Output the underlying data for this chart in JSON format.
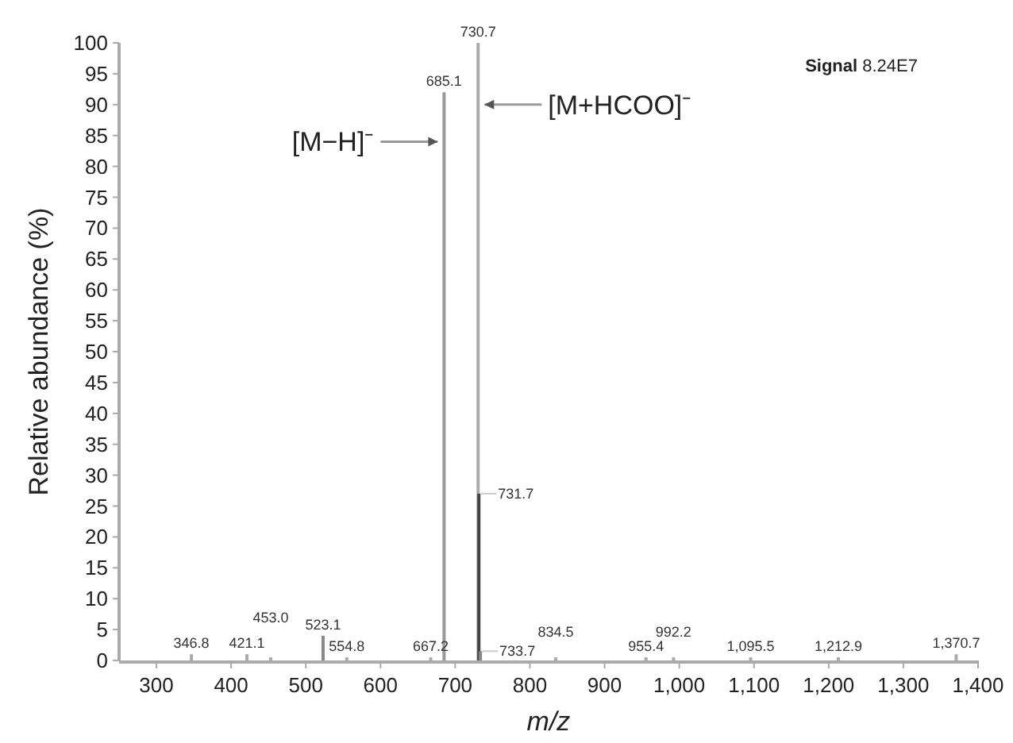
{
  "chart_data": {
    "type": "bar",
    "xlabel": "m/z",
    "ylabel": "Relative abundance (%)",
    "x": [
      346.8,
      421.1,
      453.0,
      523.1,
      554.8,
      667.2,
      685.1,
      730.7,
      731.7,
      733.7,
      834.5,
      955.4,
      992.2,
      1095.5,
      1212.9,
      1370.7
    ],
    "values": [
      1,
      1,
      0.5,
      4,
      0.5,
      0.5,
      92,
      100,
      27,
      1.5,
      0.5,
      0.5,
      0.5,
      0.5,
      0.5,
      1
    ],
    "colors": [
      "#aaaaaa",
      "#aaaaaa",
      "#aaaaaa",
      "#888888",
      "#aaaaaa",
      "#aaaaaa",
      "#999999",
      "#aaaaaa",
      "#444444",
      "#888888",
      "#aaaaaa",
      "#aaaaaa",
      "#aaaaaa",
      "#aaaaaa",
      "#aaaaaa",
      "#aaaaaa"
    ],
    "xlim": [
      250,
      1400
    ],
    "xticks": [
      300,
      400,
      500,
      600,
      700,
      800,
      900,
      {
        "value": 1000,
        "label": "1,000"
      },
      {
        "value": 1100,
        "label": "1,100"
      },
      {
        "value": 1200,
        "label": "1,200"
      },
      {
        "value": 1300,
        "label": "1,300"
      },
      {
        "value": 1400,
        "label": "1,400"
      }
    ],
    "ylim": [
      0,
      100
    ],
    "yticks": [
      0,
      5,
      10,
      15,
      20,
      25,
      30,
      35,
      40,
      45,
      50,
      55,
      60,
      65,
      70,
      75,
      80,
      85,
      90,
      95,
      100
    ],
    "annotations": [
      {
        "text": "346.8",
        "x": 346.8,
        "y": 1
      },
      {
        "text": "421.1",
        "x": 421.1,
        "y": 1
      },
      {
        "text": "453.0",
        "x": 453.0,
        "y": 0.5
      },
      {
        "text": "523.1",
        "x": 523.1,
        "y": 4
      },
      {
        "text": "554.8",
        "x": 554.8,
        "y": 0.5
      },
      {
        "text": "667.2",
        "x": 667.2,
        "y": 0.5
      },
      {
        "text": "685.1",
        "x": 685.1,
        "y": 92
      },
      {
        "text": "730.7",
        "x": 730.7,
        "y": 100
      },
      {
        "text": "731.7",
        "x": 731.7,
        "y": 27
      },
      {
        "text": "733.7",
        "x": 733.7,
        "y": 1.5
      },
      {
        "text": "834.5",
        "x": 834.5,
        "y": 0.5
      },
      {
        "text": "955.4",
        "x": 955.4,
        "y": 0.5
      },
      {
        "text": "992.2",
        "x": 992.2,
        "y": 0.5
      },
      {
        "text": "1,095.5",
        "x": 1095.5,
        "y": 0.5
      },
      {
        "text": "1,212.9",
        "x": 1212.9,
        "y": 0.5
      },
      {
        "text": "1,370.7",
        "x": 1370.7,
        "y": 1
      },
      {
        "text": "[M−H]⁻",
        "x": 685.1,
        "y": 84
      },
      {
        "text": "[M+HCOO]⁻",
        "x": 730.7,
        "y": 90
      },
      "Signal 8.24E7"
    ]
  }
}
